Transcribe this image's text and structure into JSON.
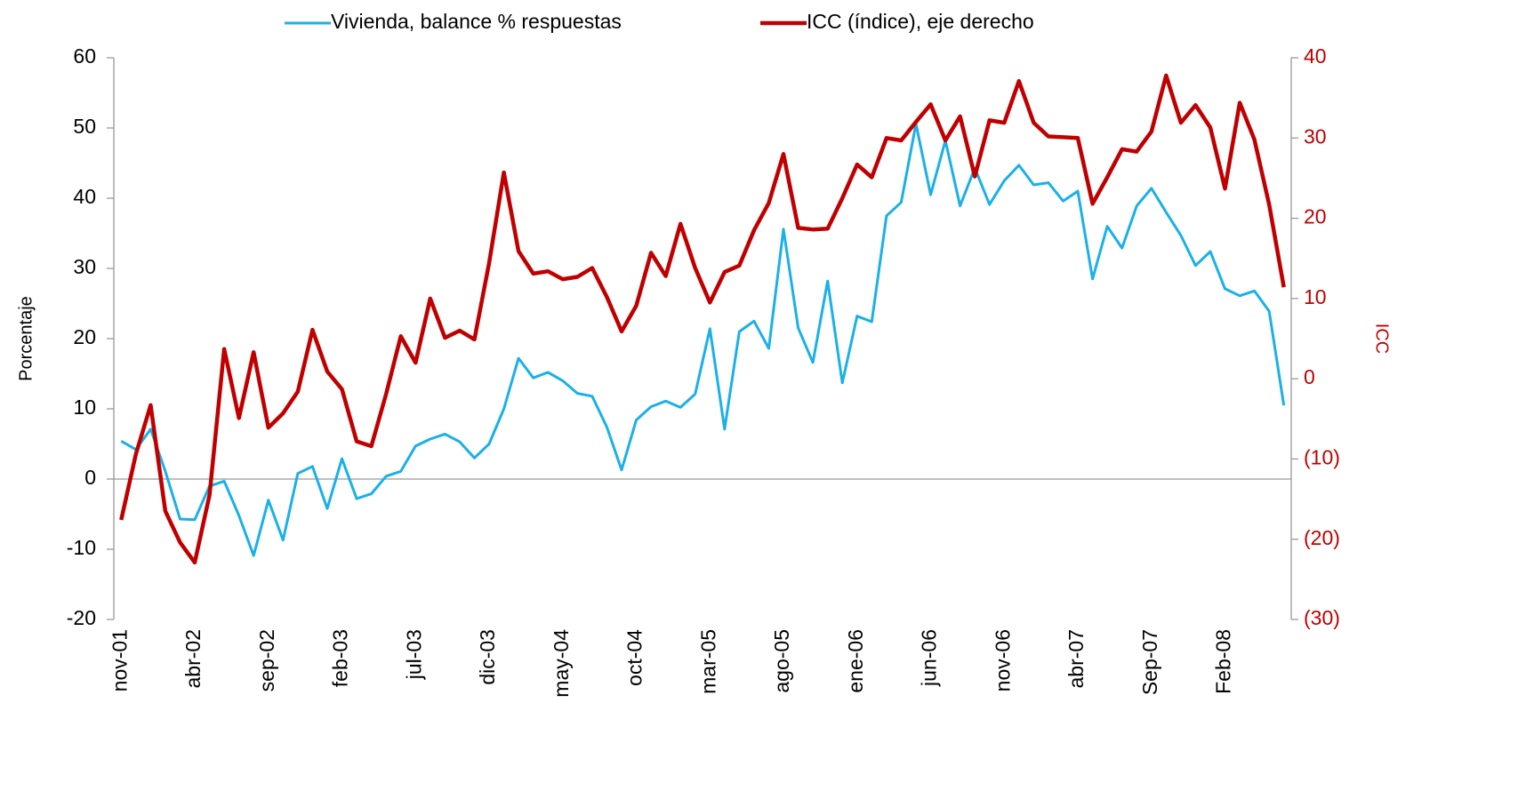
{
  "chart_data": {
    "type": "line",
    "y_label": "Porcentaje",
    "y2_label": "ICC",
    "categories": [
      "nov-01",
      null,
      null,
      null,
      null,
      "abr-02",
      null,
      null,
      null,
      null,
      "sep-02",
      null,
      null,
      null,
      null,
      "feb-03",
      null,
      null,
      null,
      null,
      "jul-03",
      null,
      null,
      null,
      null,
      "dic-03",
      null,
      null,
      null,
      null,
      "may-04",
      null,
      null,
      null,
      null,
      "oct-04",
      null,
      null,
      null,
      null,
      "mar-05",
      null,
      null,
      null,
      null,
      "ago-05",
      null,
      null,
      null,
      null,
      "ene-06",
      null,
      null,
      null,
      null,
      "jun-06",
      null,
      null,
      null,
      null,
      "nov-06",
      null,
      null,
      null,
      null,
      "abr-07",
      null,
      null,
      null,
      null,
      "Sep-07",
      null,
      null,
      null,
      null,
      "Feb-08",
      null,
      null,
      null,
      null
    ],
    "series": [
      {
        "name": "Vivienda, balance % respuestas",
        "color": "#1ab0e8",
        "axis": "y",
        "values": [
          5.4,
          4.2,
          7.1,
          1.1,
          -5.7,
          -5.8,
          -1.0,
          -0.3,
          -5.2,
          -10.9,
          -3.0,
          -8.7,
          0.8,
          1.8,
          -4.2,
          2.9,
          -2.8,
          -2.1,
          0.4,
          1.1,
          4.7,
          5.7,
          6.4,
          5.3,
          3.0,
          5.0,
          10.0,
          17.2,
          14.4,
          15.2,
          14.0,
          12.2,
          11.8,
          7.4,
          1.3,
          8.4,
          10.3,
          11.1,
          10.2,
          12.1,
          21.4,
          7.1,
          21.0,
          22.5,
          18.6,
          35.6,
          21.5,
          16.6,
          28.2,
          13.7,
          23.2,
          22.4,
          37.5,
          39.4,
          50.6,
          40.5,
          48.2,
          38.9,
          44.3,
          39.1,
          42.5,
          44.7,
          41.9,
          42.2,
          39.6,
          41.0,
          28.5,
          36.0,
          32.9,
          38.9,
          41.4,
          38.0,
          34.7,
          30.4,
          32.4,
          27.1,
          26.1,
          26.8,
          23.9,
          10.5
        ]
      },
      {
        "name": "ICC (índice), eje derecho",
        "color": "#c00000",
        "axis": "y2",
        "values": [
          -17.6,
          -9.4,
          -3.3,
          -16.5,
          -20.4,
          -22.9,
          -14.5,
          3.7,
          -4.9,
          3.3,
          -6.1,
          -4.3,
          -1.6,
          6.1,
          0.9,
          -1.3,
          -7.8,
          -8.4,
          -1.9,
          5.3,
          2.0,
          10.0,
          5.1,
          6.0,
          4.9,
          14.4,
          25.7,
          15.9,
          13.1,
          13.4,
          12.4,
          12.7,
          13.8,
          10.2,
          5.9,
          9.1,
          15.7,
          12.8,
          19.3,
          13.8,
          9.5,
          13.3,
          14.1,
          18.5,
          21.9,
          28.0,
          18.8,
          18.6,
          18.7,
          22.5,
          26.7,
          25.1,
          30.0,
          29.7,
          32.0,
          34.2,
          29.7,
          32.7,
          25.2,
          32.2,
          31.9,
          37.1,
          31.9,
          30.2,
          30.1,
          30.0,
          21.8,
          25.1,
          28.6,
          28.3,
          30.8,
          37.8,
          31.9,
          34.1,
          31.3,
          23.7,
          34.4,
          29.8,
          21.7,
          11.4
        ]
      }
    ],
    "ylim": [
      -20,
      60
    ],
    "yticks": [
      -20,
      -10,
      0,
      10,
      20,
      30,
      40,
      50,
      60
    ],
    "y2lim": [
      -30,
      40
    ],
    "y2ticks": [
      {
        "value": -30,
        "label": "(30)"
      },
      {
        "value": -20,
        "label": "(20)"
      },
      {
        "value": -10,
        "label": "(10)"
      },
      0,
      10,
      20,
      30,
      40
    ],
    "y2_color": "#c00000",
    "legend": "top",
    "grid": false
  }
}
